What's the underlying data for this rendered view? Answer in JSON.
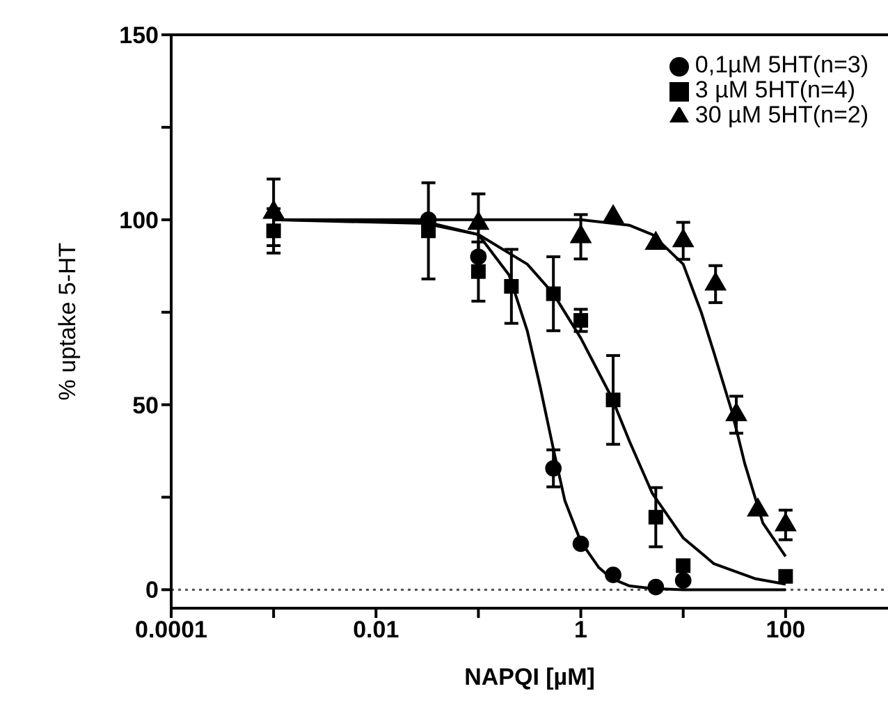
{
  "chart_data": {
    "type": "scatter",
    "xlabel": "NAPQI [µM]",
    "ylabel": "% uptake 5-HT",
    "log": "x",
    "xlim": [
      0.0001,
      1000
    ],
    "xticks": [
      0.0001,
      {
        "value": 0.001,
        "label": null
      },
      0.01,
      {
        "value": 0.1,
        "label": null
      },
      1,
      {
        "value": 10,
        "label": null
      },
      100
    ],
    "ylim": [
      -5,
      150
    ],
    "yticks": [
      0,
      {
        "value": 25,
        "label": null
      },
      50,
      {
        "value": 75,
        "label": null
      },
      100,
      {
        "value": 125,
        "label": null
      },
      150
    ],
    "grid": false,
    "legend": "top right",
    "ref_lines": [
      {
        "axis": "y",
        "value": 0,
        "line_style": "dotted",
        "color": "#555555"
      }
    ],
    "series": [
      {
        "name": "0,1µM 5HT(n=3)",
        "marker": "circle",
        "color": "#000000",
        "x": [
          0.0325,
          0.1,
          0.54,
          1,
          2.07,
          5.4,
          10
        ],
        "values": [
          100,
          90,
          32.8,
          12.4,
          4,
          0.7,
          2.5
        ],
        "errors": [
          null,
          null,
          5,
          null,
          null,
          null,
          null
        ]
      },
      {
        "name": "3 µM 5HT(n=4)",
        "marker": "square",
        "color": "#000000",
        "x": [
          0.001,
          0.0325,
          0.1,
          0.21,
          0.54,
          1,
          2.07,
          5.4,
          10,
          100
        ],
        "values": [
          97,
          97,
          86,
          82,
          80,
          72.8,
          51.3,
          19.6,
          6.5,
          3.6
        ],
        "errors": [
          6,
          13,
          8,
          10,
          10,
          3,
          12,
          8,
          null,
          null
        ]
      },
      {
        "name": "30 µM 5HT(n=2)",
        "marker": "triangle",
        "color": "#000000",
        "x": [
          0.001,
          0.1,
          1,
          2.07,
          5.4,
          10,
          20.7,
          33,
          53.6,
          100
        ],
        "values": [
          102,
          99,
          95.4,
          100.8,
          93.6,
          94.3,
          82.6,
          47.3,
          21.5,
          17.5
        ],
        "errors": [
          9,
          8,
          6,
          null,
          null,
          5,
          5,
          5,
          null,
          4
        ]
      },
      {
        "type": "line",
        "marker": "none",
        "color": "#000000",
        "x": [
          0.001,
          0.03,
          0.1,
          0.2,
          0.3,
          0.4,
          0.54,
          0.7,
          1,
          1.5,
          2,
          3,
          5,
          10,
          100
        ],
        "values": [
          100,
          99.5,
          96,
          85,
          70,
          55,
          38,
          24,
          13,
          6,
          3,
          1,
          0.3,
          0,
          0
        ]
      },
      {
        "type": "line",
        "marker": "none",
        "color": "#000000",
        "x": [
          0.001,
          0.03,
          0.1,
          0.3,
          0.54,
          1,
          2,
          3,
          5,
          10,
          20,
          50,
          100
        ],
        "values": [
          100,
          99,
          96,
          88,
          80,
          68,
          52,
          40,
          26,
          14,
          7,
          3,
          1.5
        ]
      },
      {
        "type": "line",
        "marker": "none",
        "color": "#000000",
        "x": [
          0.001,
          1,
          3,
          5,
          10,
          15,
          20,
          30,
          40,
          60,
          100
        ],
        "values": [
          100,
          100,
          98.5,
          96,
          88,
          75,
          64,
          48,
          34,
          18,
          9
        ]
      }
    ]
  }
}
